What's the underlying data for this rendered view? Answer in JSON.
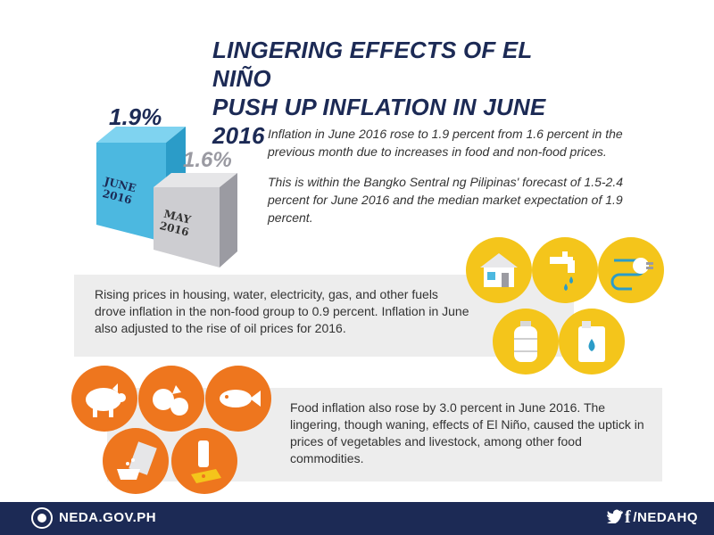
{
  "title": {
    "line1": "LINGERING EFFECTS OF EL NIÑO",
    "line2": "PUSH UP INFLATION IN JUNE 2016"
  },
  "comparison": {
    "june": {
      "value": "1.9%",
      "label_month": "JUNE",
      "label_year": "2016"
    },
    "may": {
      "value": "1.6%",
      "label_month": "MAY",
      "label_year": "2016"
    }
  },
  "intro": {
    "paragraph1": "Inflation in June 2016 rose to 1.9 percent from 1.6 percent in the previous month due to increases in food and non-food prices.",
    "paragraph2": "This is within the Bangko Sentral ng Pilipinas' forecast of 1.5-2.4 percent for June 2016 and the median market expectation of 1.9 percent."
  },
  "nonfood": {
    "text": "Rising prices in housing, water, electricity, gas, and other fuels drove inflation in the non-food group to 0.9 percent. Inflation in June also adjusted to the rise of oil prices for 2016.",
    "icons": [
      "house-icon",
      "faucet-icon",
      "electric-plug-icon",
      "gas-tank-icon",
      "oil-container-icon"
    ],
    "color": "#f4c51b"
  },
  "food": {
    "text": "Food inflation also rose by 3.0 percent in June 2016. The lingering, though waning, effects of El Niño, caused the uptick in prices of vegetables and livestock, among other food commodities.",
    "icons": [
      "pig-icon",
      "vegetables-icon",
      "fish-icon",
      "sugar-icon",
      "dairy-icon"
    ],
    "color": "#ee761e"
  },
  "footer": {
    "site": "NEDA.GOV.PH",
    "handle": "/NEDAHQ",
    "social_icons": [
      "twitter-icon",
      "facebook-icon"
    ],
    "color": "#1c2a55"
  }
}
